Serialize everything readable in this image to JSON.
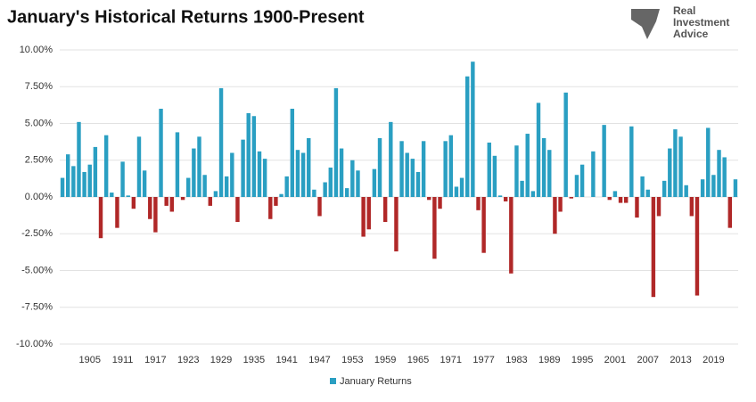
{
  "chart_data": {
    "type": "bar",
    "title": "January's Historical Returns 1900-Present",
    "logo": [
      "Real",
      "Investment",
      "Advice"
    ],
    "categories": [
      null,
      null,
      null,
      null,
      null,
      "1905",
      null,
      null,
      null,
      null,
      null,
      "1911",
      null,
      null,
      null,
      null,
      null,
      "1917",
      null,
      null,
      null,
      null,
      null,
      "1923",
      null,
      null,
      null,
      null,
      null,
      "1929",
      null,
      null,
      null,
      null,
      null,
      "1935",
      null,
      null,
      null,
      null,
      null,
      "1941",
      null,
      null,
      null,
      null,
      null,
      "1947",
      null,
      null,
      null,
      null,
      null,
      "1953",
      null,
      null,
      null,
      null,
      null,
      "1959",
      null,
      null,
      null,
      null,
      null,
      "1965",
      null,
      null,
      null,
      null,
      null,
      "1971",
      null,
      null,
      null,
      null,
      null,
      "1977",
      null,
      null,
      null,
      null,
      null,
      "1983",
      null,
      null,
      null,
      null,
      null,
      "1989",
      null,
      null,
      null,
      null,
      null,
      "1995",
      null,
      null,
      null,
      null,
      null,
      "2001",
      null,
      null,
      null,
      null,
      null,
      "2007",
      null,
      null,
      null,
      null,
      null,
      "2013",
      null,
      null,
      null,
      null,
      null,
      "2019",
      null,
      null,
      null,
      null
    ],
    "series": [
      {
        "name": "January Returns",
        "color": "#2a9fc2",
        "negative_color": "#b02828",
        "values": [
          1.3,
          2.9,
          2.1,
          5.1,
          1.7,
          2.2,
          3.4,
          -2.8,
          4.2,
          0.3,
          -2.1,
          2.4,
          0.1,
          -0.8,
          4.1,
          1.8,
          -1.5,
          -2.4,
          6.0,
          -0.6,
          -1.0,
          4.4,
          -0.2,
          1.3,
          3.3,
          4.1,
          1.5,
          -0.6,
          0.4,
          7.4,
          1.4,
          3.0,
          -1.7,
          3.9,
          5.7,
          5.5,
          3.1,
          2.6,
          -1.5,
          -0.6,
          0.2,
          1.4,
          6.0,
          3.2,
          3.0,
          4.0,
          0.5,
          -1.3,
          1.0,
          2.0,
          7.4,
          3.3,
          0.6,
          2.5,
          1.8,
          -2.7,
          -2.2,
          1.9,
          4.0,
          -1.7,
          5.1,
          -3.7,
          3.8,
          3.0,
          2.6,
          1.7,
          3.8,
          -0.2,
          -4.2,
          -0.8,
          3.8,
          4.2,
          0.7,
          1.3,
          8.2,
          9.2,
          -0.9,
          -3.8,
          3.7,
          2.8,
          0.1,
          -0.3,
          -5.2,
          3.5,
          1.1,
          4.3,
          0.4,
          6.4,
          4.0,
          3.2,
          -2.5,
          -1.0,
          7.1,
          -0.1,
          1.5,
          2.2,
          0,
          3.1,
          0,
          4.9,
          -0.2,
          0.4,
          -0.4,
          -0.4,
          4.8,
          -1.4,
          1.4,
          0.5,
          -6.8,
          -1.3,
          1.1,
          3.3,
          4.6,
          4.1,
          0.8,
          -1.3,
          -6.7,
          1.2,
          4.7,
          1.5,
          3.2,
          2.7,
          -2.1,
          1.2
        ]
      }
    ],
    "ylim": [
      -10,
      10
    ],
    "yticks": [
      {
        "value": -10,
        "label": "-10.00%"
      },
      {
        "value": -7.5,
        "label": "-7.50%"
      },
      {
        "value": -5,
        "label": "-5.00%"
      },
      {
        "value": -2.5,
        "label": "-2.50%"
      },
      {
        "value": 0,
        "label": "0.00%"
      },
      {
        "value": 2.5,
        "label": "2.50%"
      },
      {
        "value": 5,
        "label": "5.00%"
      },
      {
        "value": 7.5,
        "label": "7.50%"
      },
      {
        "value": 10,
        "label": "10.00%"
      }
    ],
    "grid": true,
    "legend": "bottom"
  }
}
